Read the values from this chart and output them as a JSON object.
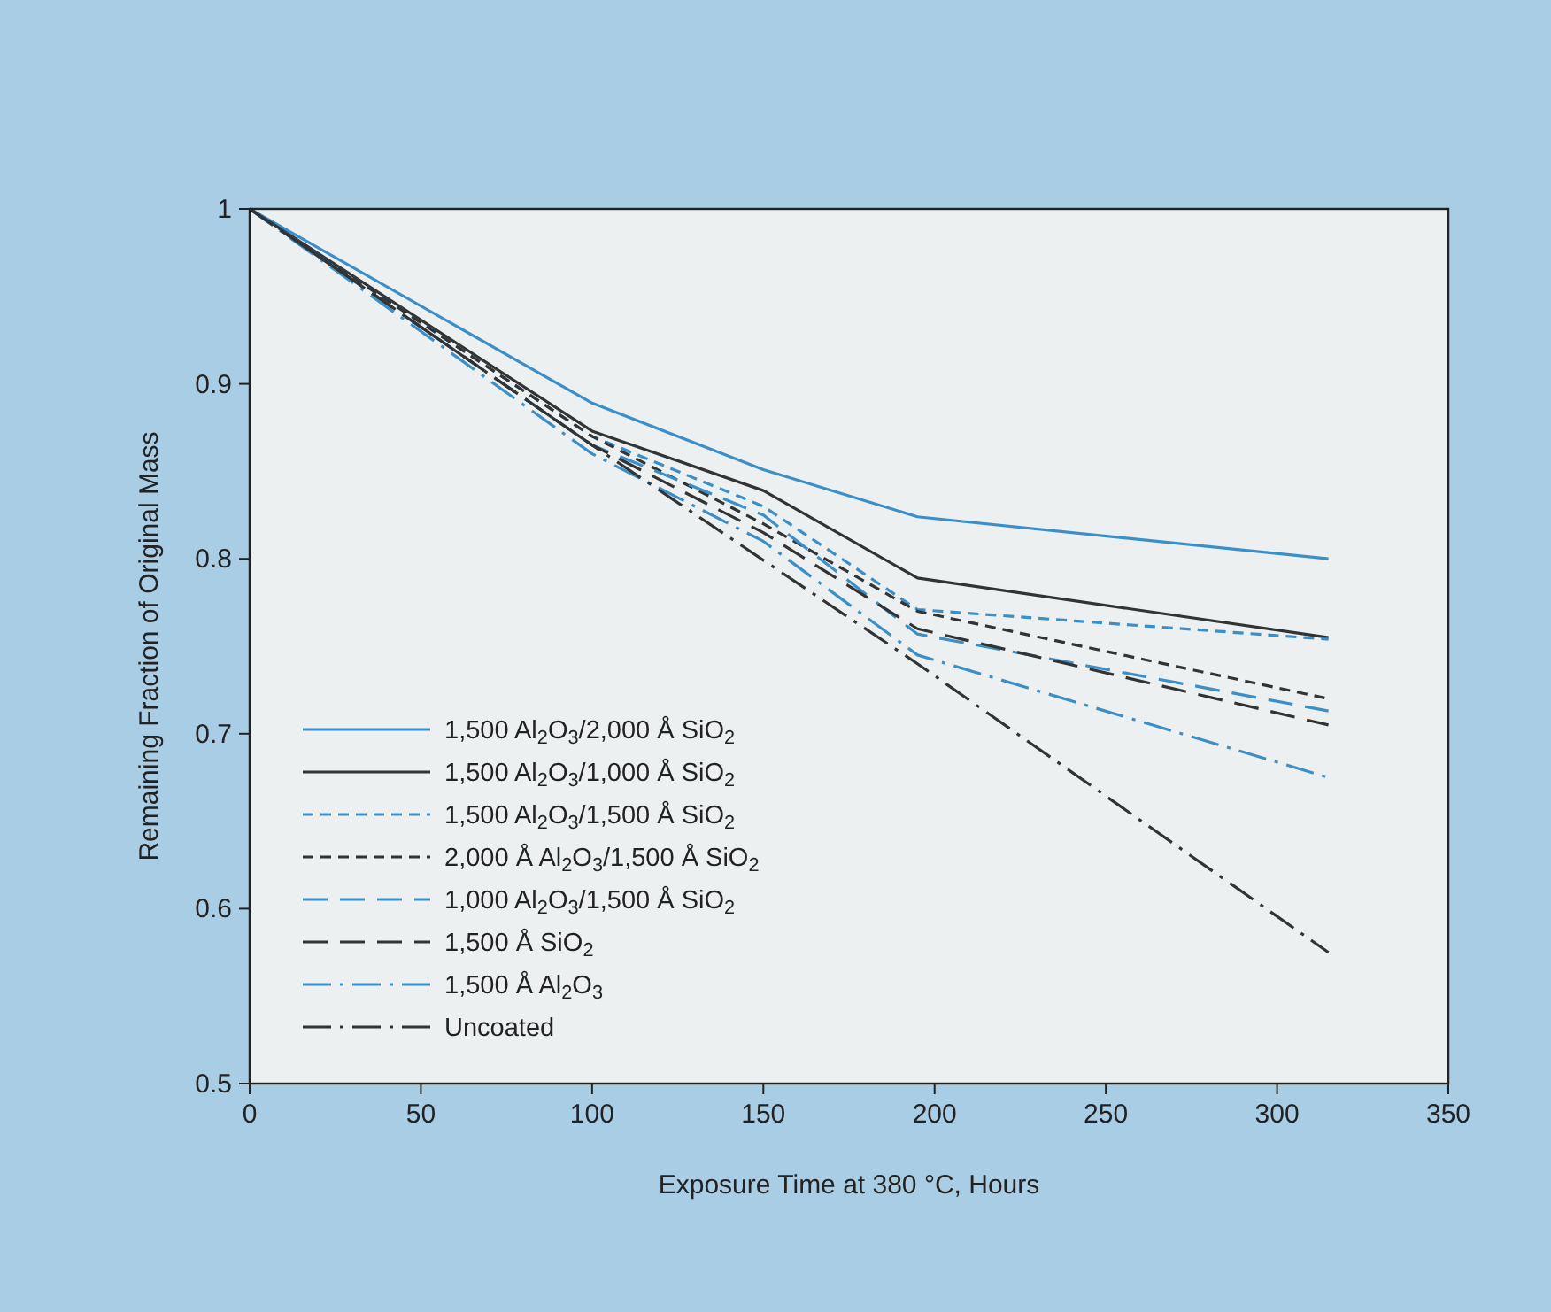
{
  "chart_data": {
    "type": "line",
    "xlabel": "Exposure Time at 380 °C, Hours",
    "ylabel": "Remaining Fraction of Original Mass",
    "xlim": [
      0,
      350
    ],
    "ylim": [
      0.5,
      1
    ],
    "xticks": [
      0,
      50,
      100,
      150,
      200,
      250,
      300,
      350
    ],
    "yticks": [
      0.5,
      0.6,
      0.7,
      0.8,
      0.9,
      1
    ],
    "legend": "bottom left",
    "grid": false,
    "marker": "none",
    "x": [
      0,
      100,
      150,
      195,
      315
    ],
    "series": [
      {
        "name": "1,500 Al$_{2}$O$_{3}$/2,000 Å SiO$_{2}$",
        "color": "#3a8fc8",
        "line_style": "solid",
        "values": [
          1,
          0.889,
          0.851,
          0.824,
          0.8
        ]
      },
      {
        "name": "1,500 Al$_{2}$O$_{3}$/1,000 Å SiO$_{2}$",
        "color": "#333333",
        "line_style": "solid",
        "values": [
          1,
          0.873,
          0.839,
          0.789,
          0.755
        ]
      },
      {
        "name": "1,500 Al$_{2}$O$_{3}$/1,500 Å SiO$_{2}$",
        "color": "#3a8fc8",
        "line_style": "dashed",
        "values": [
          1,
          0.87,
          0.83,
          0.771,
          0.754
        ]
      },
      {
        "name": "2,000 Å Al$_{2}$O$_{3}$/1,500 Å SiO$_{2}$",
        "color": "#333333",
        "line_style": "dashed",
        "values": [
          1,
          0.87,
          0.82,
          0.77,
          0.72
        ]
      },
      {
        "name": "1,000 Al$_{2}$O$_{3}$/1,500 Å SiO$_{2}$",
        "color": "#3a8fc8",
        "line_style": "longdash",
        "values": [
          1,
          0.865,
          0.825,
          0.757,
          0.713
        ]
      },
      {
        "name": "1,500 Å SiO$_{2}$",
        "color": "#333333",
        "line_style": "longdash",
        "values": [
          1,
          0.865,
          0.815,
          0.76,
          0.705
        ]
      },
      {
        "name": "1,500 Å Al$_{2}$O$_{3}$",
        "color": "#3a8fc8",
        "line_style": "dashdot",
        "values": [
          1,
          0.86,
          0.81,
          0.745,
          0.675
        ]
      },
      {
        "name": "Uncoated",
        "color": "#333333",
        "line_style": "dashdot",
        "x": [
          0,
          100,
          195,
          315
        ],
        "values": [
          1,
          0.865,
          0.74,
          0.575
        ]
      }
    ]
  }
}
